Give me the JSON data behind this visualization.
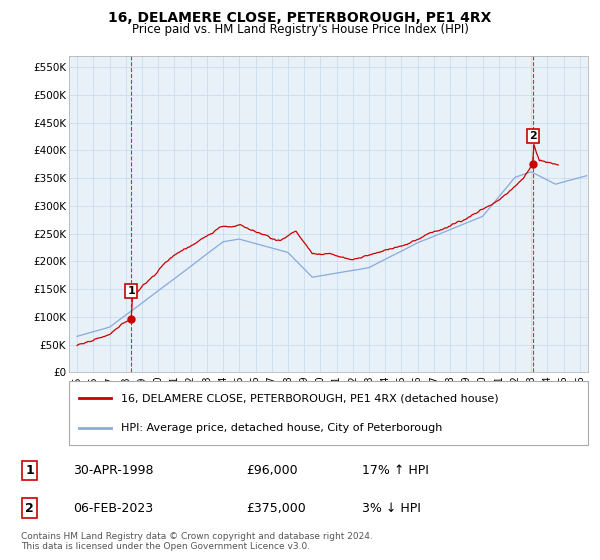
{
  "title": "16, DELAMERE CLOSE, PETERBOROUGH, PE1 4RX",
  "subtitle": "Price paid vs. HM Land Registry's House Price Index (HPI)",
  "legend_line1": "16, DELAMERE CLOSE, PETERBOROUGH, PE1 4RX (detached house)",
  "legend_line2": "HPI: Average price, detached house, City of Peterborough",
  "footer": "Contains HM Land Registry data © Crown copyright and database right 2024.\nThis data is licensed under the Open Government Licence v3.0.",
  "sale1_date": "30-APR-1998",
  "sale1_price": "£96,000",
  "sale1_hpi": "17% ↑ HPI",
  "sale2_date": "06-FEB-2023",
  "sale2_price": "£375,000",
  "sale2_hpi": "3% ↓ HPI",
  "sale1_x": 1998.33,
  "sale1_y": 96000,
  "sale2_x": 2023.09,
  "sale2_y": 375000,
  "ylim": [
    0,
    570000
  ],
  "xlim": [
    1994.5,
    2026.5
  ],
  "yticks": [
    0,
    50000,
    100000,
    150000,
    200000,
    250000,
    300000,
    350000,
    400000,
    450000,
    500000,
    550000
  ],
  "ytick_labels": [
    "£0",
    "£50K",
    "£100K",
    "£150K",
    "£200K",
    "£250K",
    "£300K",
    "£350K",
    "£400K",
    "£450K",
    "£500K",
    "£550K"
  ],
  "xticks": [
    1995,
    1996,
    1997,
    1998,
    1999,
    2000,
    2001,
    2002,
    2003,
    2004,
    2005,
    2006,
    2007,
    2008,
    2009,
    2010,
    2011,
    2012,
    2013,
    2014,
    2015,
    2016,
    2017,
    2018,
    2019,
    2020,
    2021,
    2022,
    2023,
    2024,
    2025,
    2026
  ],
  "grid_color": "#c8ddf0",
  "hpi_color": "#88aadd",
  "price_color": "#cc0000",
  "sale_marker_color": "#cc0000",
  "bg_color": "#ffffff",
  "plot_bg_color": "#e8f0f8"
}
